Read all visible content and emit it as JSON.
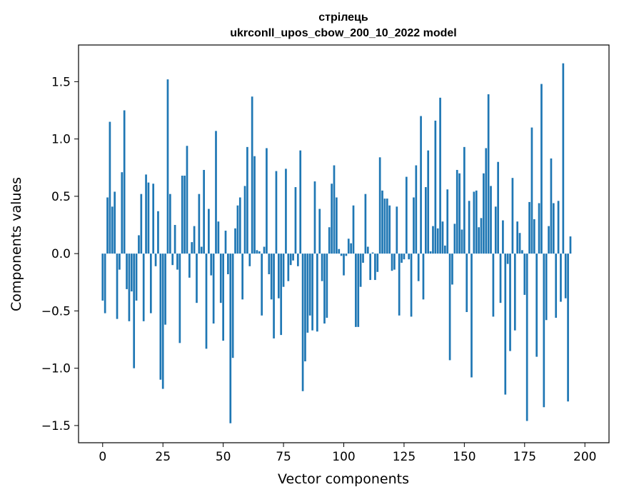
{
  "chart_data": {
    "type": "bar",
    "title": "стрілець",
    "subtitle": "ukrconll_upos_cbow_200_10_2022 model",
    "xlabel": "Vector components",
    "ylabel": "Components values",
    "xlim": [
      -10,
      210
    ],
    "ylim": [
      -1.65,
      1.82
    ],
    "xticks": [
      0,
      25,
      50,
      75,
      100,
      125,
      150,
      175,
      200
    ],
    "xtick_labels": [
      "0",
      "25",
      "50",
      "75",
      "100",
      "125",
      "150",
      "175",
      "200"
    ],
    "yticks": [
      -1.5,
      -1.0,
      -0.5,
      0.0,
      0.5,
      1.0,
      1.5
    ],
    "ytick_labels": [
      "−1.5",
      "−1.0",
      "−0.5",
      "0.0",
      "0.5",
      "1.0",
      "1.5"
    ],
    "color": "#1f77b4",
    "values": [
      -0.41,
      -0.52,
      0.49,
      1.15,
      0.41,
      0.54,
      -0.57,
      -0.14,
      0.71,
      1.25,
      -0.31,
      -0.59,
      -0.33,
      -1.0,
      -0.41,
      0.16,
      0.52,
      -0.59,
      0.69,
      0.62,
      -0.52,
      0.61,
      -0.11,
      0.37,
      -1.1,
      -1.18,
      -0.62,
      1.52,
      0.52,
      -0.1,
      0.25,
      -0.14,
      -0.78,
      0.68,
      0.68,
      0.94,
      -0.21,
      0.1,
      0.24,
      -0.43,
      0.52,
      0.06,
      0.73,
      -0.83,
      0.39,
      -0.19,
      -0.61,
      1.07,
      0.28,
      -0.43,
      -0.76,
      0.2,
      -0.18,
      -1.48,
      -0.91,
      0.22,
      0.42,
      0.49,
      -0.4,
      0.59,
      0.93,
      -0.11,
      1.37,
      0.85,
      0.03,
      0.02,
      -0.54,
      0.06,
      0.92,
      -0.18,
      -0.4,
      -0.74,
      0.72,
      -0.39,
      -0.71,
      -0.29,
      0.74,
      -0.24,
      -0.1,
      -0.06,
      0.58,
      -0.11,
      0.9,
      -1.2,
      -0.94,
      -0.69,
      -0.54,
      -0.67,
      0.63,
      -0.68,
      0.39,
      -0.24,
      -0.61,
      -0.56,
      0.23,
      0.61,
      0.77,
      0.49,
      0.04,
      -0.02,
      -0.19,
      -0.02,
      0.13,
      0.09,
      0.42,
      -0.64,
      -0.64,
      -0.29,
      -0.08,
      0.52,
      0.06,
      -0.23,
      0.01,
      -0.23,
      -0.16,
      0.84,
      0.55,
      0.48,
      0.48,
      0.42,
      -0.15,
      -0.14,
      0.41,
      -0.54,
      -0.08,
      -0.05,
      0.67,
      -0.05,
      -0.55,
      0.49,
      0.77,
      -0.24,
      1.2,
      -0.4,
      0.58,
      0.9,
      0.02,
      0.24,
      1.16,
      0.22,
      1.36,
      0.28,
      0.07,
      0.56,
      -0.93,
      -0.27,
      0.26,
      0.73,
      0.7,
      0.21,
      0.93,
      -0.51,
      0.46,
      -1.08,
      0.54,
      0.55,
      0.23,
      0.31,
      0.7,
      0.92,
      1.39,
      0.59,
      -0.55,
      0.41,
      0.8,
      -0.43,
      0.29,
      -1.23,
      -0.09,
      -0.85,
      0.66,
      -0.67,
      0.28,
      0.18,
      0.03,
      -0.36,
      -1.46,
      0.45,
      1.1,
      0.3,
      -0.9,
      0.44,
      1.48,
      -1.34,
      -0.58,
      0.24,
      0.83,
      0.44,
      -0.56,
      0.46,
      -0.42,
      1.66,
      -0.39,
      -1.29,
      0.15
    ]
  }
}
